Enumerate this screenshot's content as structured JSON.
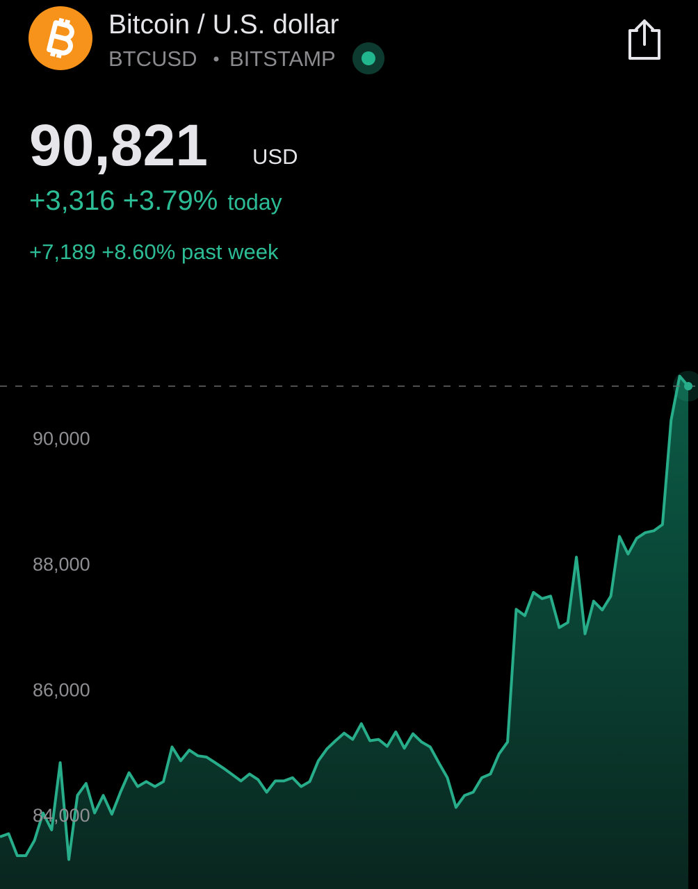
{
  "header": {
    "title": "Bitcoin / U.S. dollar",
    "symbol": "BTCUSD",
    "exchange": "BITSTAMP"
  },
  "quote": {
    "price": "90,821",
    "currency": "USD",
    "change_today": "+3,316 +3.79%",
    "today_label": "today",
    "change_week": "+7,189 +8.60% past week"
  },
  "chart_data": {
    "type": "area",
    "values": [
      83650,
      83700,
      83350,
      83350,
      83590,
      84030,
      83760,
      84830,
      83290,
      84310,
      84500,
      84030,
      84310,
      84010,
      84360,
      84670,
      84450,
      84530,
      84450,
      84530,
      85080,
      84860,
      85030,
      84940,
      84920,
      84830,
      84740,
      84640,
      84540,
      84650,
      84560,
      84360,
      84540,
      84540,
      84590,
      84450,
      84530,
      84860,
      85050,
      85180,
      85300,
      85200,
      85450,
      85180,
      85200,
      85090,
      85320,
      85060,
      85290,
      85160,
      85080,
      84830,
      84590,
      84120,
      84310,
      84360,
      84590,
      84650,
      84970,
      85160,
      87270,
      87170,
      87540,
      87440,
      87480,
      86980,
      87060,
      88100,
      86880,
      87400,
      87260,
      87480,
      88430,
      88150,
      88400,
      88490,
      88520,
      88620,
      90280,
      90980,
      90821
    ],
    "color": "#27ad89",
    "ylim": [
      82820,
      91440
    ],
    "yticks": [
      {
        "value": 84000,
        "label": "84,000"
      },
      {
        "value": 86000,
        "label": "86,000"
      },
      {
        "value": 88000,
        "label": "88,000"
      },
      {
        "value": 90000,
        "label": "90,000"
      }
    ]
  }
}
